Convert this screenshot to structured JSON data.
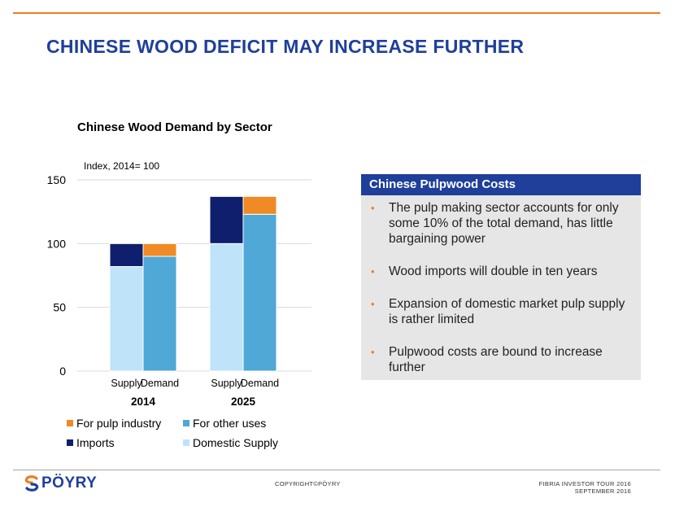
{
  "slide": {
    "title": "CHINESE WOOD DEFICIT MAY INCREASE FURTHER"
  },
  "chart_data": {
    "type": "bar",
    "stacked": true,
    "title": "Chinese Wood Demand by Sector",
    "ylabel": "Index, 2014= 100",
    "ylim": [
      0,
      150
    ],
    "yticks": [
      0,
      50,
      100,
      150
    ],
    "grid": true,
    "legend_position": "bottom",
    "groups": [
      {
        "label": "2014",
        "bars": [
          {
            "label": "Supply",
            "segments": [
              {
                "series": "Domestic Supply",
                "value": 82
              },
              {
                "series": "Imports",
                "value": 18
              }
            ]
          },
          {
            "label": "Demand",
            "segments": [
              {
                "series": "For other uses",
                "value": 90
              },
              {
                "series": "For pulp industry",
                "value": 10
              }
            ]
          }
        ]
      },
      {
        "label": "2025",
        "bars": [
          {
            "label": "Supply",
            "segments": [
              {
                "series": "Domestic Supply",
                "value": 100
              },
              {
                "series": "Imports",
                "value": 37
              }
            ]
          },
          {
            "label": "Demand",
            "segments": [
              {
                "series": "For other uses",
                "value": 123
              },
              {
                "series": "For pulp industry",
                "value": 14
              }
            ]
          }
        ]
      }
    ],
    "series": [
      {
        "name": "For pulp industry",
        "color": "#f08a24"
      },
      {
        "name": "For other uses",
        "color": "#4fa8d6"
      },
      {
        "name": "Imports",
        "color": "#0f1f6e"
      },
      {
        "name": "Domestic Supply",
        "color": "#bfe3f8"
      }
    ]
  },
  "panel": {
    "title": "Chinese Pulpwood Costs",
    "bullet_glyph": "•",
    "bullets": [
      "The pulp making sector accounts for only some 10% of the total demand, has little bargaining power",
      "Wood imports will double in ten years",
      "Expansion of domestic market pulp supply is rather limited",
      "Pulpwood costs are bound to increase further"
    ]
  },
  "footer": {
    "logo_text": "PÖYRY",
    "logo_icon": "poyry-logo-icon",
    "copyright": "COPYRIGHT©PÖYRY",
    "event_line1": "FIBRIA INVESTOR TOUR 2016",
    "event_line2": "SEPTEMBER 2016"
  },
  "colors": {
    "accent_orange": "#f07d23",
    "brand_blue": "#1f3f9b"
  }
}
